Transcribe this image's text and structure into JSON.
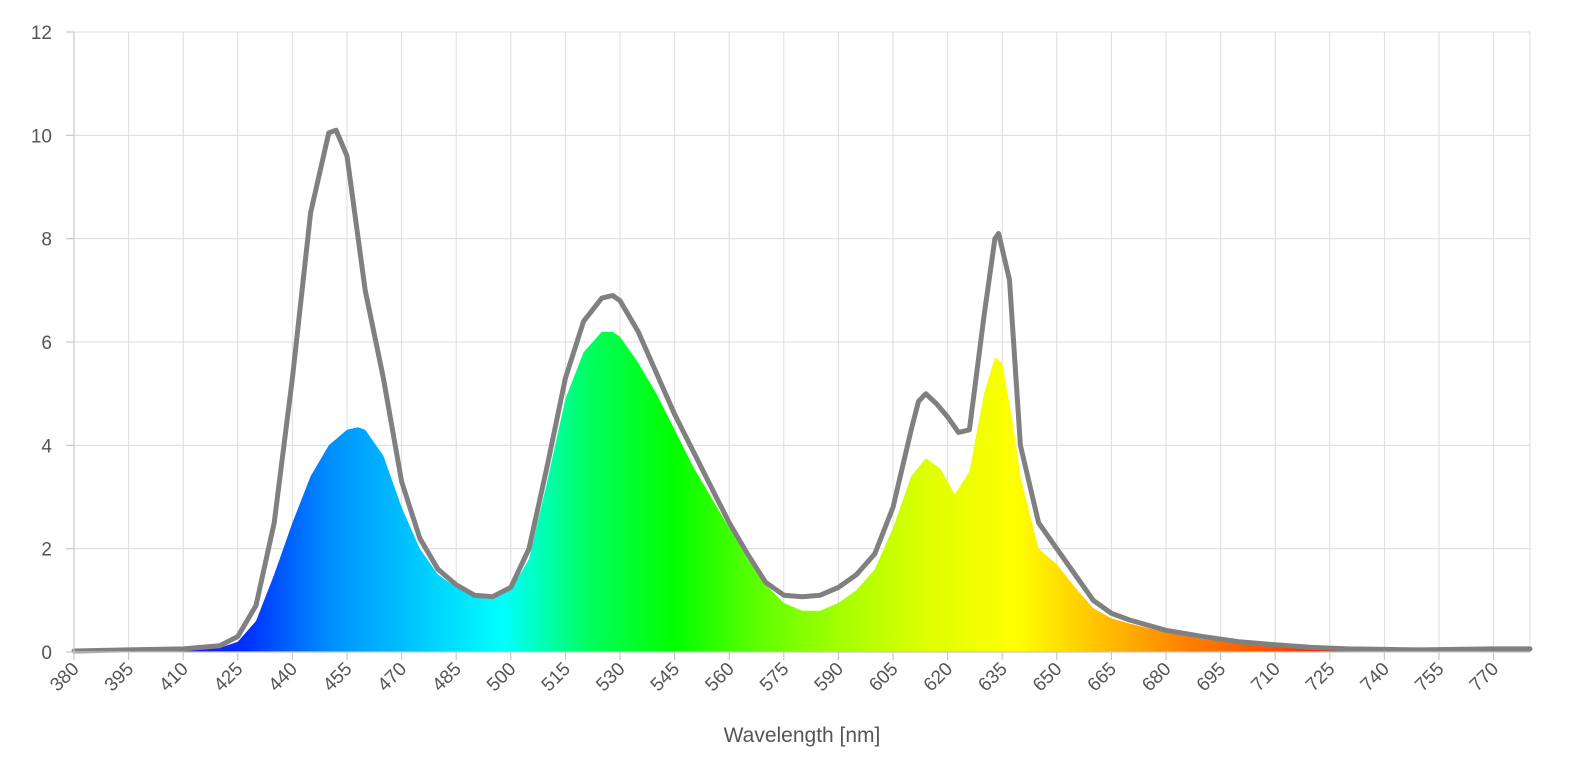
{
  "chart_data": {
    "type": "area",
    "xlabel": "Wavelength [nm]",
    "ylabel": "",
    "xlim": [
      380,
      780
    ],
    "ylim": [
      0,
      12
    ],
    "x_ticks": [
      380,
      395,
      410,
      425,
      440,
      455,
      470,
      485,
      500,
      515,
      530,
      545,
      560,
      575,
      590,
      605,
      620,
      635,
      650,
      665,
      680,
      695,
      710,
      725,
      740,
      755,
      770
    ],
    "y_ticks": [
      0,
      2,
      4,
      6,
      8,
      10,
      12
    ],
    "grid": true,
    "fill_colors": [
      "#7a00c8",
      "#3a00ff",
      "#0030ff",
      "#0090ff",
      "#00c8ff",
      "#00ffff",
      "#00ff60",
      "#00ff00",
      "#60ff00",
      "#a8ff00",
      "#e0ff00",
      "#ffff00",
      "#ffc000",
      "#ff8000",
      "#ff5000",
      "#ff0000",
      "#e00000",
      "#8a0000"
    ],
    "reference_line_color": "#808080",
    "series": [
      {
        "style": "spectrum-fill",
        "x": [
          380,
          395,
          410,
          420,
          425,
          430,
          435,
          440,
          445,
          450,
          455,
          458,
          460,
          465,
          470,
          475,
          480,
          485,
          490,
          495,
          500,
          505,
          510,
          515,
          520,
          525,
          528,
          530,
          535,
          540,
          545,
          550,
          555,
          560,
          565,
          570,
          575,
          580,
          585,
          590,
          595,
          600,
          605,
          610,
          614,
          618,
          622,
          626,
          630,
          633,
          635,
          638,
          640,
          645,
          650,
          655,
          660,
          665,
          670,
          680,
          690,
          700,
          710,
          720,
          730,
          740,
          750,
          760,
          770,
          780
        ],
        "values": [
          0,
          0.01,
          0.02,
          0.08,
          0.2,
          0.6,
          1.5,
          2.5,
          3.4,
          4.0,
          4.3,
          4.35,
          4.3,
          3.8,
          2.8,
          2.0,
          1.5,
          1.25,
          1.1,
          1.1,
          1.2,
          1.8,
          3.3,
          4.9,
          5.8,
          6.2,
          6.2,
          6.1,
          5.6,
          5.0,
          4.3,
          3.6,
          3.0,
          2.4,
          1.8,
          1.3,
          0.95,
          0.8,
          0.8,
          0.95,
          1.2,
          1.6,
          2.4,
          3.4,
          3.75,
          3.55,
          3.05,
          3.5,
          5.0,
          5.7,
          5.6,
          4.4,
          3.4,
          2.0,
          1.7,
          1.25,
          0.85,
          0.65,
          0.55,
          0.38,
          0.25,
          0.17,
          0.11,
          0.07,
          0.05,
          0.03,
          0.02,
          0.02,
          0.02,
          0.02
        ]
      },
      {
        "style": "line",
        "x": [
          380,
          395,
          410,
          420,
          425,
          430,
          435,
          440,
          445,
          450,
          452,
          455,
          460,
          465,
          470,
          475,
          480,
          485,
          490,
          495,
          500,
          505,
          510,
          515,
          520,
          525,
          528,
          530,
          535,
          540,
          545,
          550,
          555,
          560,
          565,
          570,
          575,
          580,
          585,
          590,
          595,
          600,
          605,
          610,
          612,
          614,
          617,
          620,
          623,
          626,
          630,
          633,
          634,
          637,
          640,
          645,
          650,
          655,
          660,
          665,
          670,
          680,
          690,
          700,
          710,
          720,
          730,
          740,
          750,
          760,
          770,
          780
        ],
        "values": [
          0.02,
          0.04,
          0.06,
          0.12,
          0.3,
          0.9,
          2.5,
          5.3,
          8.5,
          10.05,
          10.1,
          9.6,
          7.0,
          5.3,
          3.3,
          2.2,
          1.6,
          1.3,
          1.1,
          1.07,
          1.25,
          2.0,
          3.6,
          5.3,
          6.4,
          6.85,
          6.9,
          6.8,
          6.2,
          5.4,
          4.6,
          3.9,
          3.2,
          2.5,
          1.9,
          1.35,
          1.1,
          1.07,
          1.1,
          1.25,
          1.5,
          1.9,
          2.8,
          4.3,
          4.85,
          5.0,
          4.8,
          4.55,
          4.25,
          4.3,
          6.5,
          8.0,
          8.1,
          7.2,
          4.0,
          2.5,
          2.0,
          1.5,
          1.0,
          0.75,
          0.62,
          0.42,
          0.3,
          0.2,
          0.14,
          0.09,
          0.06,
          0.05,
          0.04,
          0.05,
          0.06,
          0.06
        ]
      }
    ]
  }
}
